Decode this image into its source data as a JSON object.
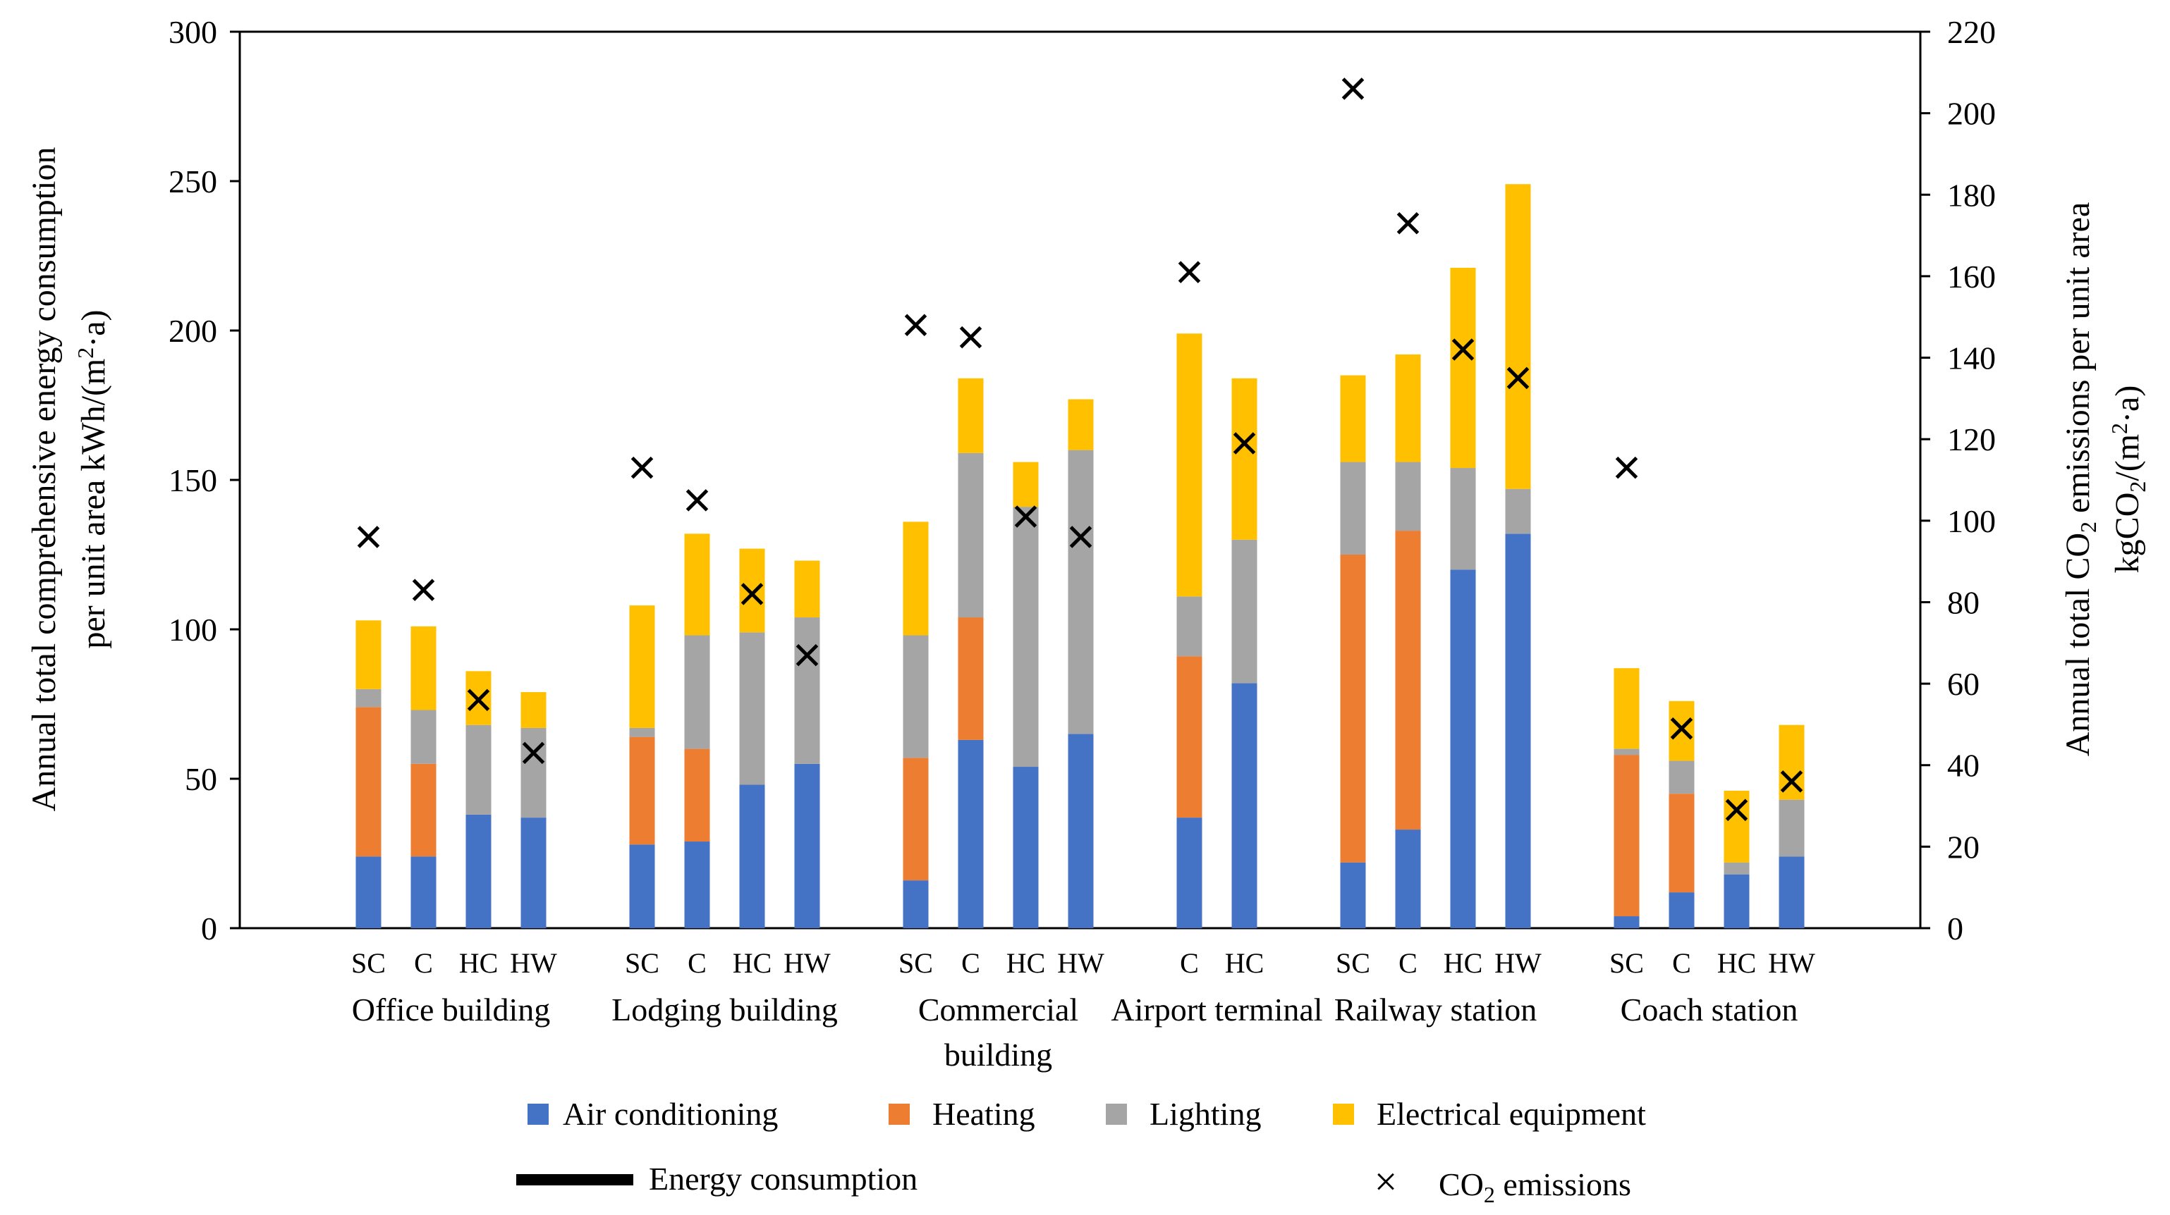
{
  "chart_data": {
    "type": "bar",
    "stacked": true,
    "left_axis": {
      "label_line1": "Annual total comprehensive energy consumption",
      "label_line2": "per unit area kWh/(m",
      "label_sup": "2",
      "label_tail": "·a)",
      "ylim": [
        0,
        300
      ],
      "ticks": [
        "0",
        "50",
        "100",
        "150",
        "200",
        "250",
        "300"
      ]
    },
    "right_axis": {
      "label_line1_pre": "Annual total CO",
      "label_line1_sub": "2",
      "label_line1_post": " emissions per unit area",
      "label_line2_pre": "kgCO",
      "label_line2_sub": "2",
      "label_line2_mid": "/(m",
      "label_line2_sup": "2",
      "label_line2_post": "·a)",
      "ylim": [
        0,
        220
      ],
      "ticks": [
        "0",
        "20",
        "40",
        "60",
        "80",
        "100",
        "120",
        "140",
        "160",
        "180",
        "200",
        "220"
      ]
    },
    "series": [
      {
        "name": "Air conditioning",
        "color": "#4472C4"
      },
      {
        "name": "Heating",
        "color": "#ED7D31"
      },
      {
        "name": "Lighting",
        "color": "#A5A5A5"
      },
      {
        "name": "Electrical equipment",
        "color": "#FFC000"
      }
    ],
    "groups": [
      {
        "name_lines": [
          "Office building"
        ],
        "bars": [
          {
            "label": "SC",
            "values": [
              24,
              50,
              6,
              23
            ],
            "co2": 96
          },
          {
            "label": "C",
            "values": [
              24,
              31,
              18,
              28
            ],
            "co2": 83
          },
          {
            "label": "HC",
            "values": [
              38,
              0,
              30,
              18
            ],
            "co2": 56
          },
          {
            "label": "HW",
            "values": [
              37,
              0,
              30,
              12
            ],
            "co2": 43
          }
        ]
      },
      {
        "name_lines": [
          "Lodging building"
        ],
        "bars": [
          {
            "label": "SC",
            "values": [
              28,
              36,
              3,
              41
            ],
            "co2": 113
          },
          {
            "label": "C",
            "values": [
              29,
              31,
              38,
              34
            ],
            "co2": 105
          },
          {
            "label": "HC",
            "values": [
              48,
              0,
              51,
              28
            ],
            "co2": 82
          },
          {
            "label": "HW",
            "values": [
              55,
              0,
              49,
              19
            ],
            "co2": 67
          }
        ]
      },
      {
        "name_lines": [
          "Commercial",
          "building"
        ],
        "bars": [
          {
            "label": "SC",
            "values": [
              16,
              41,
              41,
              38
            ],
            "co2": 148
          },
          {
            "label": "C",
            "values": [
              63,
              41,
              55,
              25
            ],
            "co2": 145
          },
          {
            "label": "HC",
            "values": [
              54,
              0,
              87,
              15
            ],
            "co2": 101
          },
          {
            "label": "HW",
            "values": [
              65,
              0,
              95,
              17
            ],
            "co2": 96
          }
        ]
      },
      {
        "name_lines": [
          "Airport terminal"
        ],
        "bars": [
          {
            "label": "C",
            "values": [
              37,
              54,
              20,
              88
            ],
            "co2": 161
          },
          {
            "label": "HC",
            "values": [
              82,
              0,
              48,
              54
            ],
            "co2": 119
          }
        ]
      },
      {
        "name_lines": [
          "Railway station"
        ],
        "bars": [
          {
            "label": "SC",
            "values": [
              22,
              103,
              31,
              29
            ],
            "co2": 206
          },
          {
            "label": "C",
            "values": [
              33,
              100,
              23,
              36
            ],
            "co2": 173
          },
          {
            "label": "HC",
            "values": [
              120,
              0,
              34,
              67
            ],
            "co2": 142
          },
          {
            "label": "HW",
            "values": [
              132,
              0,
              15,
              102
            ],
            "co2": 135
          }
        ]
      },
      {
        "name_lines": [
          "Coach station"
        ],
        "bars": [
          {
            "label": "SC",
            "values": [
              4,
              54,
              2,
              27
            ],
            "co2": 113
          },
          {
            "label": "C",
            "values": [
              12,
              33,
              11,
              20
            ],
            "co2": 49
          },
          {
            "label": "HC",
            "values": [
              18,
              0,
              4,
              24
            ],
            "co2": 29
          },
          {
            "label": "HW",
            "values": [
              24,
              0,
              19,
              25
            ],
            "co2": 36
          }
        ]
      }
    ],
    "legend": {
      "energy_label": "Energy consumption",
      "co2_label_pre": "CO",
      "co2_label_sub": "2",
      "co2_label_post": " emissions",
      "co2_marker": "×"
    }
  }
}
